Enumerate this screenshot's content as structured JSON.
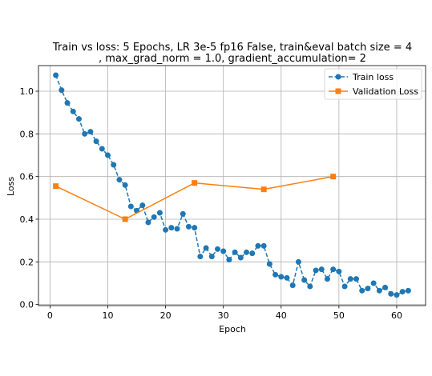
{
  "chart_data": {
    "type": "line",
    "title": "Train vs loss: 5 Epochs, LR 3e-5 fp16 False, train&eval batch size = 4\n, max_grad_norm = 1.0, gradient_accumulation= 2",
    "title_lines": [
      "Train vs loss: 5 Epochs, LR 3e-5 fp16 False, train&eval batch size = 4",
      ", max_grad_norm = 1.0, gradient_accumulation= 2"
    ],
    "xlabel": "Epoch",
    "ylabel": "Loss",
    "xlim": [
      -2,
      65
    ],
    "ylim": [
      -0.005,
      1.12
    ],
    "xticks": [
      0,
      10,
      20,
      30,
      40,
      50,
      60
    ],
    "yticks": [
      0.0,
      0.2,
      0.4,
      0.6,
      0.8,
      1.0
    ],
    "xtick_labels": [
      "0",
      "10",
      "20",
      "30",
      "40",
      "50",
      "60"
    ],
    "ytick_labels": [
      "0.0",
      "0.2",
      "0.4",
      "0.6",
      "0.8",
      "1.0"
    ],
    "grid": true,
    "legend_position": "top-right",
    "series": [
      {
        "name": "Train loss",
        "color": "#1f77b4",
        "marker": "circle",
        "linestyle": "dashed",
        "x": [
          1,
          2,
          3,
          4,
          5,
          6,
          7,
          8,
          9,
          10,
          11,
          12,
          13,
          14,
          15,
          16,
          17,
          18,
          19,
          20,
          21,
          22,
          23,
          24,
          25,
          26,
          27,
          28,
          29,
          30,
          31,
          32,
          33,
          34,
          35,
          36,
          37,
          38,
          39,
          40,
          41,
          42,
          43,
          44,
          45,
          46,
          47,
          48,
          49,
          50,
          51,
          52,
          53,
          54,
          55,
          56,
          57,
          58,
          59,
          60,
          61,
          62
        ],
        "y": [
          1.075,
          1.005,
          0.945,
          0.905,
          0.87,
          0.8,
          0.81,
          0.765,
          0.73,
          0.7,
          0.655,
          0.585,
          0.56,
          0.46,
          0.44,
          0.465,
          0.385,
          0.41,
          0.43,
          0.35,
          0.36,
          0.355,
          0.425,
          0.365,
          0.36,
          0.225,
          0.265,
          0.225,
          0.26,
          0.25,
          0.21,
          0.245,
          0.22,
          0.245,
          0.24,
          0.275,
          0.275,
          0.19,
          0.14,
          0.13,
          0.125,
          0.09,
          0.2,
          0.115,
          0.085,
          0.16,
          0.165,
          0.12,
          0.165,
          0.155,
          0.085,
          0.12,
          0.12,
          0.065,
          0.075,
          0.1,
          0.065,
          0.08,
          0.05,
          0.045,
          0.06,
          0.065
        ]
      },
      {
        "name": "Validation Loss",
        "color": "#ff7f0e",
        "marker": "square",
        "linestyle": "solid",
        "x": [
          1,
          13,
          25,
          37,
          49
        ],
        "y": [
          0.555,
          0.4,
          0.57,
          0.54,
          0.6
        ]
      }
    ]
  }
}
